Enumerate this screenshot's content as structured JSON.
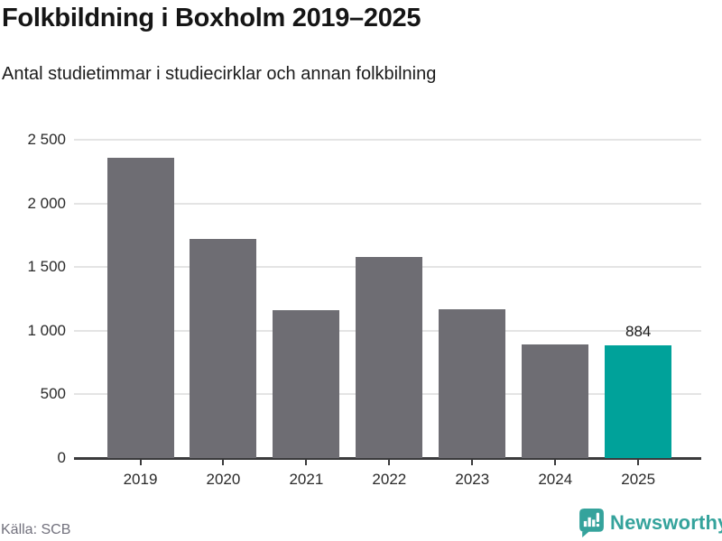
{
  "header": {
    "title": "Folkbildning i Boxholm 2019–2025",
    "subtitle": "Antal studietimmar i studiecirklar och annan folkbilning"
  },
  "chart_data": {
    "type": "bar",
    "title": "Folkbildning i Boxholm 2019–2025",
    "subtitle": "Antal studietimmar i studiecirklar och annan folkbilning",
    "categories": [
      "2019",
      "2020",
      "2021",
      "2022",
      "2023",
      "2024",
      "2025"
    ],
    "values": [
      2360,
      1720,
      1160,
      1580,
      1170,
      893,
      884
    ],
    "highlight_index": 6,
    "value_label": {
      "index": 6,
      "text": "884"
    },
    "ylim": [
      0,
      2500
    ],
    "yticks": [
      {
        "value": 2500,
        "label": "2 500"
      },
      {
        "value": 2000,
        "label": "2 000"
      },
      {
        "value": 1500,
        "label": "1 500"
      },
      {
        "value": 1000,
        "label": "1 000"
      },
      {
        "value": 500,
        "label": "500"
      },
      {
        "value": 0,
        "label": "0"
      }
    ],
    "grid": true,
    "legend": false,
    "xlabel": "",
    "ylabel": "",
    "bar_color": "#6e6d73",
    "highlight_color": "#00a29a"
  },
  "footer": {
    "source": "Källa: SCB",
    "brand": "Newsworthy",
    "brand_color": "#35a39c",
    "logo_icon": "newsworthy-speech-bubble-bar-chart-icon"
  },
  "colors": {
    "background": "#ffffff",
    "gridline": "#e4e4e4",
    "axis": "#3a3a3c",
    "text": "#1a1a1a",
    "muted_text": "#72717d"
  }
}
